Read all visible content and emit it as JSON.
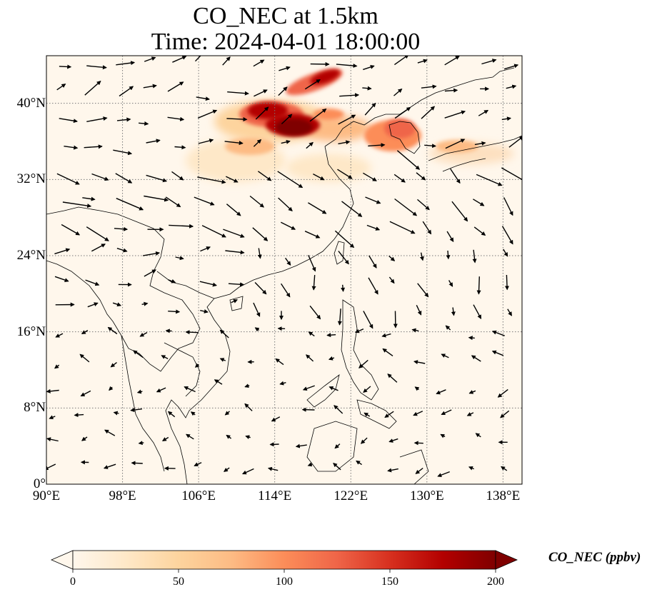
{
  "title": {
    "line1": "CO_NEC at 1.5km",
    "line2": "Time: 2024-04-01 18:00:00"
  },
  "map": {
    "variable": "CO_NEC",
    "level": "1.5km",
    "projection": "PlateCarree",
    "lon_range": [
      90,
      140
    ],
    "lat_range": [
      0,
      45
    ],
    "gridlines": "dotted",
    "overlay": "wind vectors (quiver)",
    "lon_ticks": [
      {
        "value": 90,
        "label": "90°E"
      },
      {
        "value": 98,
        "label": "98°E"
      },
      {
        "value": 106,
        "label": "106°E"
      },
      {
        "value": 114,
        "label": "114°E"
      },
      {
        "value": 122,
        "label": "122°E"
      },
      {
        "value": 130,
        "label": "130°E"
      },
      {
        "value": 138,
        "label": "138°E"
      }
    ],
    "lat_ticks": [
      {
        "value": 0,
        "label": "0°"
      },
      {
        "value": 8,
        "label": "8°N"
      },
      {
        "value": 16,
        "label": "16°N"
      },
      {
        "value": 24,
        "label": "24°N"
      },
      {
        "value": 32,
        "label": "32°N"
      },
      {
        "value": 40,
        "label": "40°N"
      }
    ]
  },
  "colorbar": {
    "label": "CO_NEC (ppbv)",
    "colormap": "OrRd",
    "min": 0,
    "max": 200,
    "extend": "both",
    "ticks": [
      "0",
      "50",
      "100",
      "150",
      "200"
    ],
    "colors": [
      "#fff7ec",
      "#fee8c8",
      "#fdd49e",
      "#fdbb84",
      "#fc8d59",
      "#ef6548",
      "#d7301f",
      "#b30000",
      "#7f0000"
    ]
  }
}
